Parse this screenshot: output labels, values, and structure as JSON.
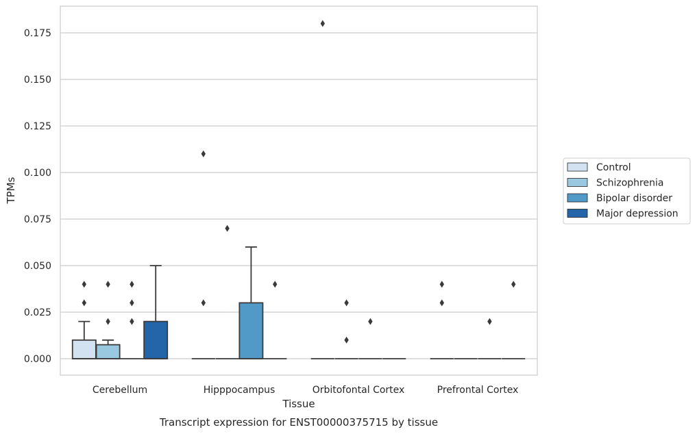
{
  "chart_data": {
    "type": "box",
    "title": "Transcript expression for ENST00000375715 by tissue",
    "xlabel": "Tissue",
    "ylabel": "TPMs",
    "ylim": [
      -0.009,
      0.189
    ],
    "yticks": [
      "0.000",
      "0.025",
      "0.050",
      "0.075",
      "0.100",
      "0.125",
      "0.150",
      "0.175"
    ],
    "grid": "horizontal",
    "legend_position": "right",
    "categories": [
      "Cerebellum",
      "Hipppocampus",
      "Orbitofontal Cortex",
      "Prefrontal Cortex"
    ],
    "series": [
      {
        "name": "Control",
        "color": "#d2e2f1",
        "boxes": [
          {
            "q1": 0,
            "median": 0,
            "q3": 0.01,
            "whisker_low": 0,
            "whisker_high": 0.02,
            "outliers": [
              0.03,
              0.04
            ]
          },
          {
            "q1": 0,
            "median": 0,
            "q3": 0,
            "whisker_low": 0,
            "whisker_high": 0,
            "outliers": [
              0.03,
              0.11
            ]
          },
          {
            "q1": 0,
            "median": 0,
            "q3": 0,
            "whisker_low": 0,
            "whisker_high": 0,
            "outliers": [
              0.18
            ]
          },
          {
            "q1": 0,
            "median": 0,
            "q3": 0,
            "whisker_low": 0,
            "whisker_high": 0,
            "outliers": [
              0.03,
              0.04
            ]
          }
        ]
      },
      {
        "name": "Schizophrenia",
        "color": "#9ac8e0",
        "boxes": [
          {
            "q1": 0,
            "median": 0,
            "q3": 0.0075,
            "whisker_low": 0,
            "whisker_high": 0.01,
            "outliers": [
              0.02,
              0.04
            ]
          },
          {
            "q1": 0,
            "median": 0,
            "q3": 0,
            "whisker_low": 0,
            "whisker_high": 0,
            "outliers": [
              0.07
            ]
          },
          {
            "q1": 0,
            "median": 0,
            "q3": 0,
            "whisker_low": 0,
            "whisker_high": 0,
            "outliers": [
              0.01,
              0.03
            ]
          },
          {
            "q1": 0,
            "median": 0,
            "q3": 0,
            "whisker_low": 0,
            "whisker_high": 0,
            "outliers": []
          }
        ]
      },
      {
        "name": "Bipolar disorder",
        "color": "#519ac8",
        "boxes": [
          {
            "q1": 0,
            "median": 0,
            "q3": 0,
            "whisker_low": 0,
            "whisker_high": 0,
            "outliers": [
              0.02,
              0.03,
              0.04
            ]
          },
          {
            "q1": 0,
            "median": 0,
            "q3": 0.03,
            "whisker_low": 0,
            "whisker_high": 0.06,
            "outliers": []
          },
          {
            "q1": 0,
            "median": 0,
            "q3": 0,
            "whisker_low": 0,
            "whisker_high": 0,
            "outliers": [
              0.02
            ]
          },
          {
            "q1": 0,
            "median": 0,
            "q3": 0,
            "whisker_low": 0,
            "whisker_high": 0,
            "outliers": [
              0.02
            ]
          }
        ]
      },
      {
        "name": "Major depression",
        "color": "#2464a8",
        "boxes": [
          {
            "q1": 0,
            "median": 0,
            "q3": 0.02,
            "whisker_low": 0,
            "whisker_high": 0.05,
            "outliers": []
          },
          {
            "q1": 0,
            "median": 0,
            "q3": 0,
            "whisker_low": 0,
            "whisker_high": 0,
            "outliers": [
              0.04
            ]
          },
          {
            "q1": 0,
            "median": 0,
            "q3": 0,
            "whisker_low": 0,
            "whisker_high": 0,
            "outliers": []
          },
          {
            "q1": 0,
            "median": 0,
            "q3": 0,
            "whisker_low": 0,
            "whisker_high": 0,
            "outliers": [
              0.04
            ]
          }
        ]
      }
    ]
  }
}
